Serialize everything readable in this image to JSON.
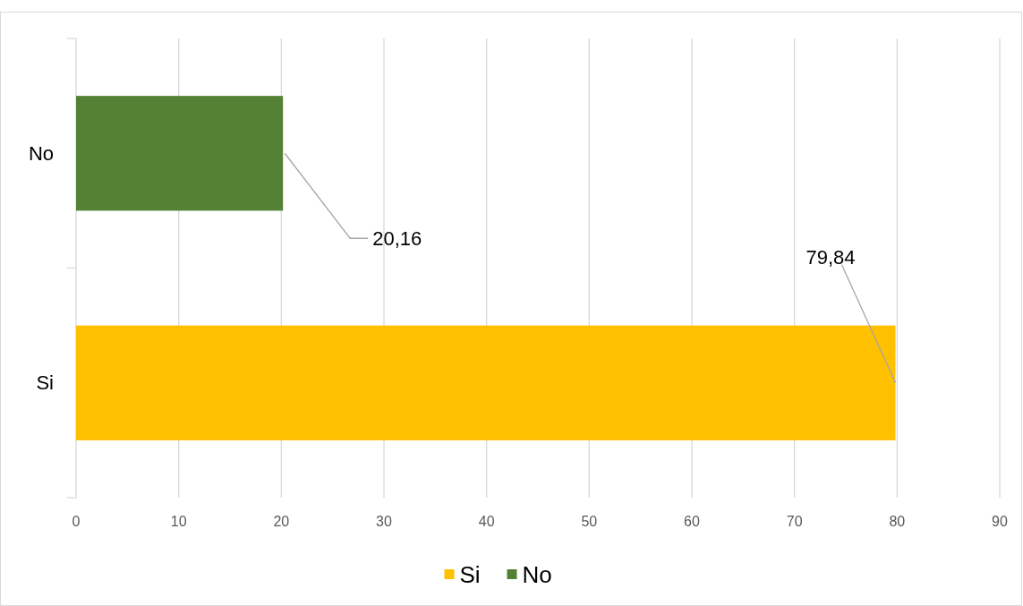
{
  "chart_data": {
    "type": "bar",
    "orientation": "horizontal",
    "categories": [
      "No",
      "Si"
    ],
    "series": [
      {
        "name": "Si",
        "color": "#ffc000",
        "values": [
          null,
          79.84
        ],
        "value_labels": [
          null,
          "79,84"
        ]
      },
      {
        "name": "No",
        "color": "#548235",
        "values": [
          20.16,
          null
        ],
        "value_labels": [
          "20,16",
          null
        ]
      }
    ],
    "xlim": [
      0,
      90
    ],
    "xticks": [
      0,
      10,
      20,
      30,
      40,
      50,
      60,
      70,
      80,
      90
    ],
    "grid": "x",
    "legend": "bottom"
  }
}
